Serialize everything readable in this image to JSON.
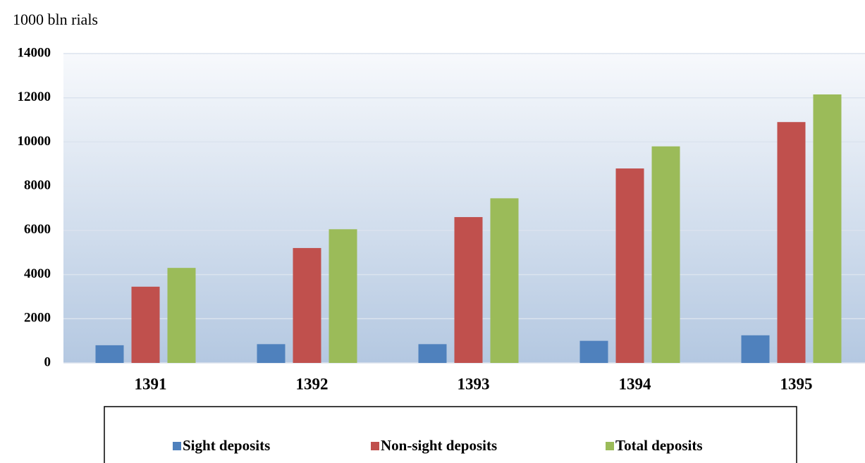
{
  "chart_data": {
    "type": "bar",
    "y_axis_label": "1000 bln rials",
    "categories": [
      "1391",
      "1392",
      "1393",
      "1394",
      "1395"
    ],
    "series": [
      {
        "name": "Sight deposits",
        "color": "#4f81bd",
        "values": [
          800,
          850,
          850,
          1000,
          1250
        ]
      },
      {
        "name": "Non-sight deposits",
        "color": "#c0504d",
        "values": [
          3450,
          5200,
          6600,
          8800,
          10900
        ]
      },
      {
        "name": "Total deposits",
        "color": "#9bbb59",
        "values": [
          4300,
          6050,
          7450,
          9800,
          12150
        ]
      }
    ],
    "ylim": [
      0,
      14000
    ],
    "yticks": [
      0,
      2000,
      4000,
      6000,
      8000,
      10000,
      12000,
      14000
    ],
    "grid": true,
    "legend": "bottom"
  }
}
